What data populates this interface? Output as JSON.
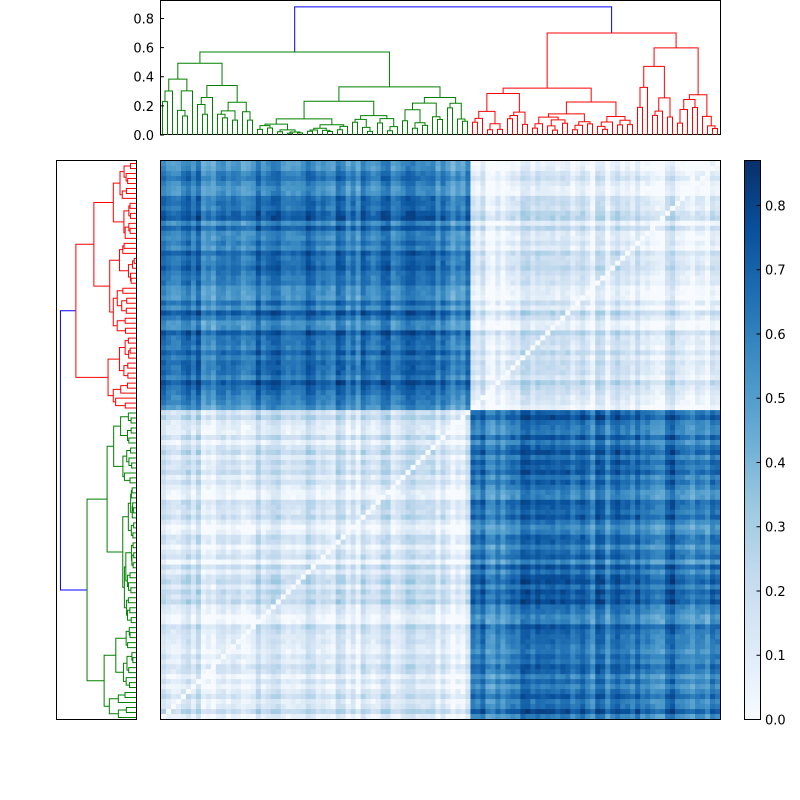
{
  "chart_data": [
    {
      "type": "dendrogram",
      "orientation": "top",
      "ylim": [
        0,
        0.92
      ],
      "yticks": [
        "0.0",
        "0.2",
        "0.4",
        "0.6",
        "0.8"
      ],
      "ytick_values": [
        0.0,
        0.2,
        0.4,
        0.6,
        0.8
      ],
      "leaf_count": 112,
      "clusters": [
        {
          "color": "#008000",
          "leaves": 62
        },
        {
          "color": "#ff0000",
          "leaves": 50
        }
      ],
      "merge_heights": {
        "root": 0.88,
        "cluster_left": 0.57,
        "cluster_right": 0.7,
        "right_sub": 0.68
      },
      "link_colors": {
        "root": "#0000ff"
      }
    },
    {
      "type": "dendrogram",
      "orientation": "left",
      "leaf_count": 112,
      "clusters": [
        {
          "color": "#ff0000",
          "leaves": 50
        },
        {
          "color": "#008000",
          "leaves": 62
        }
      ],
      "link_colors": {
        "root": "#0000ff"
      }
    },
    {
      "type": "heatmap",
      "rows": 112,
      "cols": 112,
      "cluster_sizes": [
        62,
        50
      ],
      "colormap": "Blues",
      "vmin": 0.0,
      "vmax": 0.87,
      "block_values": {
        "within_cluster": 0.12,
        "between_clusters": 0.62,
        "diagonal": 0.0
      },
      "colorbar": {
        "ticks": [
          "0.0",
          "0.1",
          "0.2",
          "0.3",
          "0.4",
          "0.5",
          "0.6",
          "0.7",
          "0.8"
        ],
        "tick_values": [
          0.0,
          0.1,
          0.2,
          0.3,
          0.4,
          0.5,
          0.6,
          0.7,
          0.8
        ]
      }
    }
  ]
}
